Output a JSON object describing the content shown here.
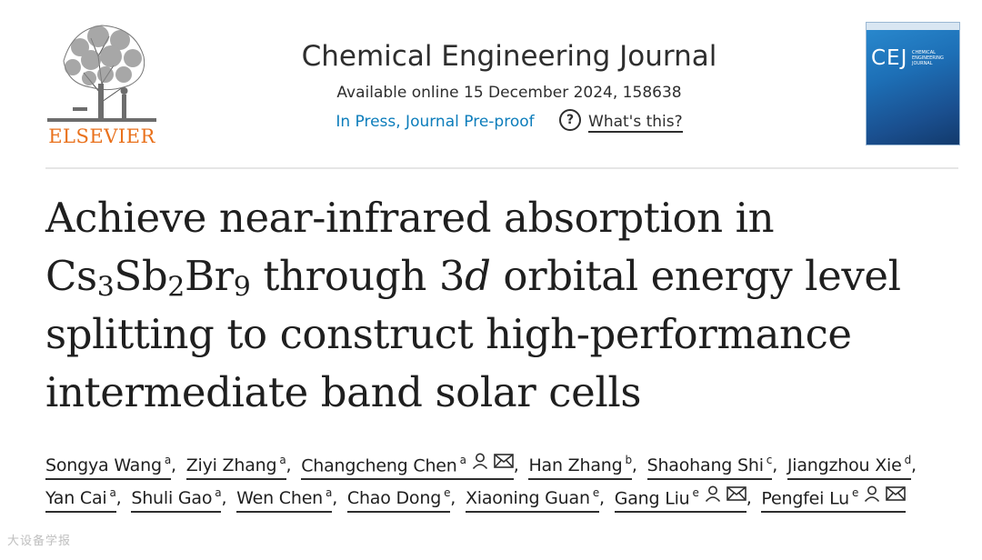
{
  "header": {
    "publisher": "ELSEVIER",
    "journal_title": "Chemical Engineering Journal",
    "available": "Available online 15 December 2024, 158638",
    "status_link": "In Press, Journal Pre-proof",
    "help_link": "What's this?",
    "help_icon": "?",
    "cover": {
      "abbr": "CEJ",
      "name": "CHEMICAL ENGINEERING JOURNAL"
    }
  },
  "article": {
    "title_part1": "Achieve near-infrared absorption in Cs",
    "sub1": "3",
    "title_part2": "Sb",
    "sub2": "2",
    "title_part3": "Br",
    "sub3": "9",
    "title_part4": " through 3",
    "title_italic": "d",
    "title_part5": " orbital energy level splitting to construct high-performance intermediate band solar cells"
  },
  "authors": [
    {
      "name": "Songya Wang",
      "aff": "a",
      "icons": []
    },
    {
      "name": "Ziyi Zhang",
      "aff": "a",
      "icons": []
    },
    {
      "name": "Changcheng Chen",
      "aff": "a",
      "icons": [
        "person-icon",
        "mail-icon"
      ]
    },
    {
      "name": "Han Zhang",
      "aff": "b",
      "icons": []
    },
    {
      "name": "Shaohang Shi",
      "aff": "c",
      "icons": []
    },
    {
      "name": "Jiangzhou Xie",
      "aff": "d",
      "icons": []
    },
    {
      "name": "Yan Cai",
      "aff": "a",
      "icons": []
    },
    {
      "name": "Shuli Gao",
      "aff": "a",
      "icons": []
    },
    {
      "name": "Wen Chen",
      "aff": "a",
      "icons": []
    },
    {
      "name": "Chao Dong",
      "aff": "e",
      "icons": []
    },
    {
      "name": "Xiaoning Guan",
      "aff": "e",
      "icons": []
    },
    {
      "name": "Gang Liu",
      "aff": "e",
      "icons": [
        "person-icon",
        "mail-icon"
      ]
    },
    {
      "name": "Pengfei Lu",
      "aff": "e",
      "icons": [
        "person-icon",
        "mail-icon"
      ]
    }
  ],
  "watermark": "大设备学报",
  "colors": {
    "publisher_orange": "#e9711c",
    "link_blue": "#0c7dbb",
    "cover_blue": "#1d6fb6"
  }
}
